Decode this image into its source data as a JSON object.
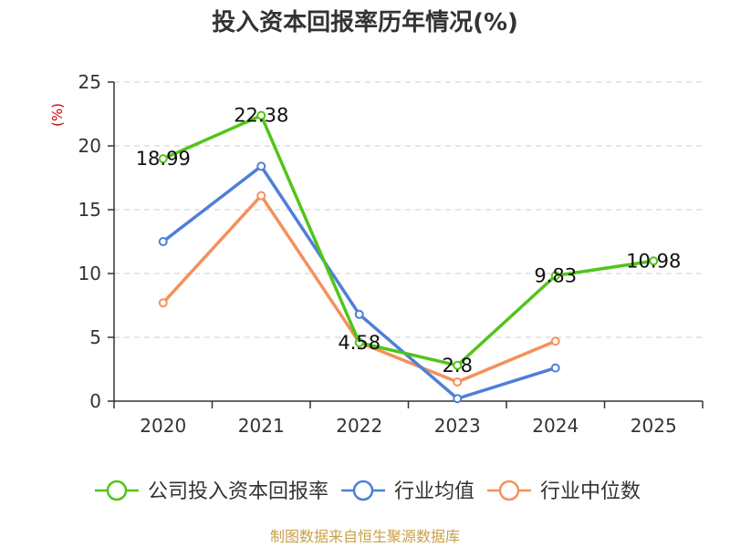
{
  "chart_data": {
    "type": "line",
    "title": "投入资本回报率历年情况(%)",
    "ylabel": "(%)",
    "xlabel": "",
    "categories": [
      "2020",
      "2021",
      "2022",
      "2023",
      "2024",
      "2025"
    ],
    "ylim": [
      0,
      25
    ],
    "yticks": [
      0,
      5,
      10,
      15,
      20,
      25
    ],
    "grid": true,
    "legend_position": "bottom",
    "series": [
      {
        "name": "公司投入资本回报率",
        "color": "#52c41a",
        "values": [
          18.99,
          22.38,
          4.58,
          2.8,
          9.83,
          10.98
        ],
        "labels": [
          "18.99",
          "22.38",
          "4.58",
          "2.8",
          "9.83",
          "10.98"
        ]
      },
      {
        "name": "行业均值",
        "color": "#4e7fd8",
        "values": [
          12.5,
          18.4,
          6.8,
          0.2,
          2.6,
          null
        ]
      },
      {
        "name": "行业中位数",
        "color": "#f5905c",
        "values": [
          7.7,
          16.1,
          4.6,
          1.5,
          4.7,
          null
        ]
      }
    ]
  },
  "source": "制图数据来自恒生聚源数据库"
}
